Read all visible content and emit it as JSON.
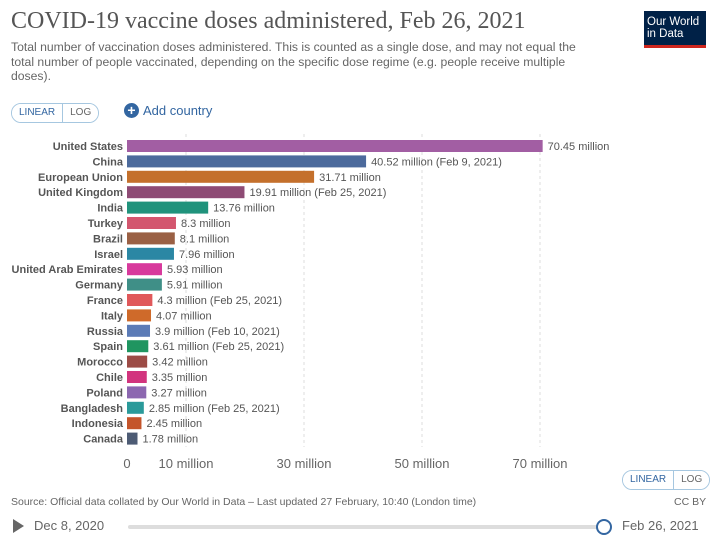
{
  "header": {
    "title": "COVID-19 vaccine doses administered, Feb 26, 2021",
    "subtitle": "Total number of vaccination doses administered. This is counted as a single dose, and may not equal the total number of people vaccinated, depending on the specific dose regime (e.g. people receive multiple doses).",
    "logo_line1": "Our World",
    "logo_line2": "in Data"
  },
  "controls": {
    "linear_label": "LINEAR",
    "log_label": "LOG",
    "add_country_label": "Add country"
  },
  "chart_data": {
    "type": "bar",
    "orientation": "horizontal",
    "title": "COVID-19 vaccine doses administered, Feb 26, 2021",
    "unit": "million",
    "xlim": [
      0,
      75
    ],
    "xticks": [
      0,
      10,
      30,
      50,
      70
    ],
    "xtick_labels": [
      "0",
      "10 million",
      "30 million",
      "50 million",
      "70 million"
    ],
    "grid": true,
    "categories": [
      "United States",
      "China",
      "European Union",
      "United Kingdom",
      "India",
      "Turkey",
      "Brazil",
      "Israel",
      "United Arab Emirates",
      "Germany",
      "France",
      "Italy",
      "Russia",
      "Spain",
      "Morocco",
      "Chile",
      "Poland",
      "Bangladesh",
      "Indonesia",
      "Canada"
    ],
    "values": [
      70.45,
      40.52,
      31.71,
      19.91,
      13.76,
      8.3,
      8.1,
      7.96,
      5.93,
      5.91,
      4.3,
      4.07,
      3.9,
      3.61,
      3.42,
      3.35,
      3.27,
      2.85,
      2.45,
      1.78
    ],
    "value_labels": [
      "70.45 million",
      "40.52 million (Feb 9, 2021)",
      "31.71 million",
      "19.91 million (Feb 25, 2021)",
      "13.76 million",
      "8.3 million",
      "8.1 million",
      "7.96 million",
      "5.93 million",
      "5.91 million",
      "4.3 million (Feb 25, 2021)",
      "4.07 million",
      "3.9 million (Feb 10, 2021)",
      "3.61 million (Feb 25, 2021)",
      "3.42 million",
      "3.35 million",
      "3.27 million",
      "2.85 million (Feb 25, 2021)",
      "2.45 million",
      "1.78 million"
    ],
    "colors": [
      "#a25ea3",
      "#4c6a9c",
      "#c4702c",
      "#8e4b75",
      "#20937c",
      "#d3566e",
      "#9a6044",
      "#2b87a4",
      "#d8399c",
      "#3f8f87",
      "#e0585a",
      "#cf6a2a",
      "#5b7bb6",
      "#1f9560",
      "#9c4b45",
      "#d2347e",
      "#8c67b0",
      "#2a9a9a",
      "#c4552b",
      "#4d5b74"
    ]
  },
  "footer": {
    "source": "Source: Official data collated by Our World in Data – Last updated 27 February, 10:40 (London time)",
    "license": "CC BY",
    "timeline_start": "Dec 8, 2020",
    "timeline_end": "Feb 26, 2021"
  }
}
